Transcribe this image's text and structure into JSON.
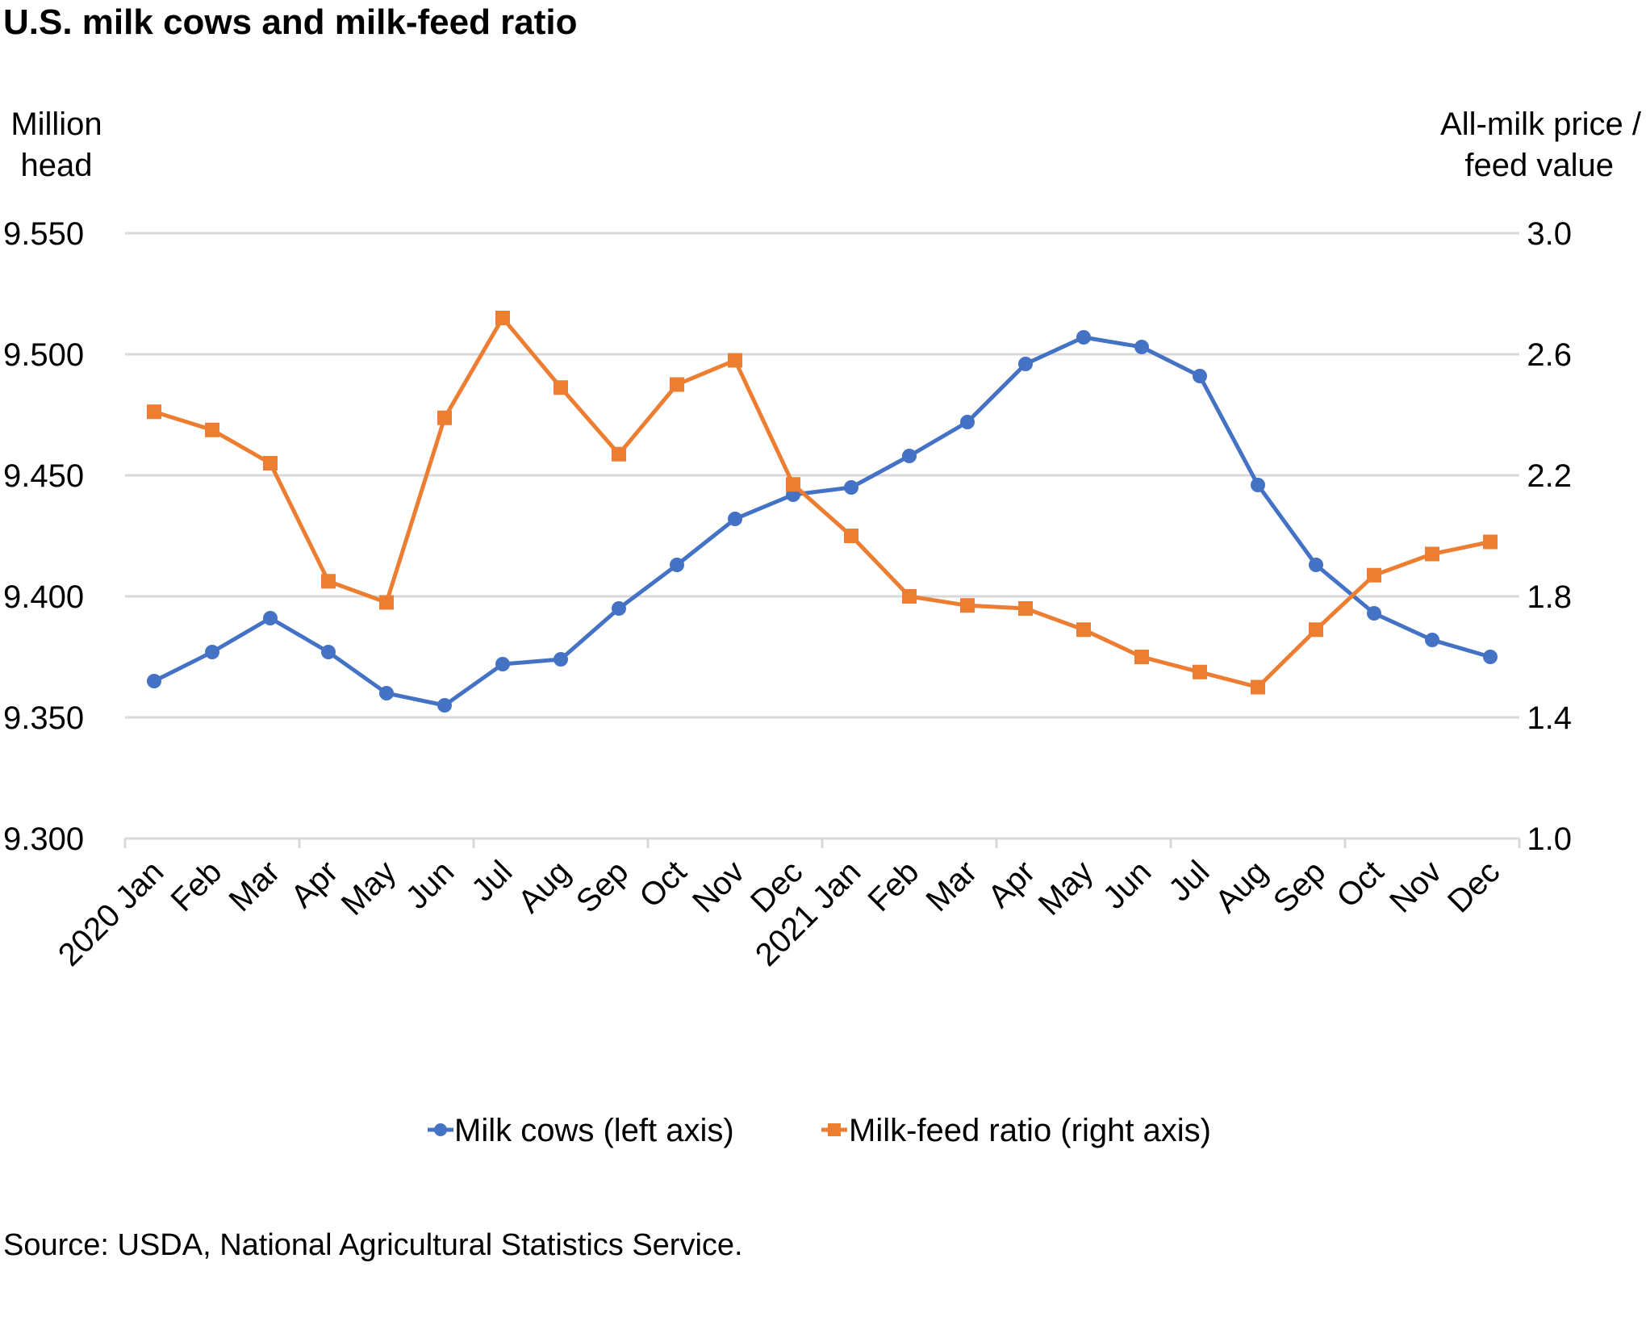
{
  "chart_data": {
    "type": "line",
    "title": "U.S. milk cows and milk-feed ratio",
    "ylabel_left": [
      "Million",
      "head"
    ],
    "ylabel_right": [
      "All-milk price /",
      "feed value"
    ],
    "categories": [
      "2020 Jan",
      "Feb",
      "Mar",
      "Apr",
      "May",
      "Jun",
      "Jul",
      "Aug",
      "Sep",
      "Oct",
      "Nov",
      "Dec",
      "2021 Jan",
      "Feb",
      "Mar",
      "Apr",
      "May",
      "Jun",
      "Jul",
      "Aug",
      "Sep",
      "Oct",
      "Nov",
      "Dec"
    ],
    "ylim_left": [
      9.3,
      9.55
    ],
    "yticks_left": [
      "9.300",
      "9.350",
      "9.400",
      "9.450",
      "9.500",
      "9.550"
    ],
    "ylim_right": [
      1.0,
      3.0
    ],
    "yticks_right": [
      "1.0",
      "1.4",
      "1.8",
      "2.2",
      "2.6",
      "3.0"
    ],
    "grid": true,
    "legend_position": "bottom",
    "series": [
      {
        "name": "Milk cows (left axis)",
        "axis": "left",
        "color": "#4472C4",
        "marker": "circle",
        "values": [
          9.365,
          9.377,
          9.391,
          9.377,
          9.36,
          9.355,
          9.372,
          9.374,
          9.395,
          9.413,
          9.432,
          9.442,
          9.445,
          9.458,
          9.472,
          9.496,
          9.507,
          9.503,
          9.491,
          9.446,
          9.413,
          9.393,
          9.382,
          9.375
        ]
      },
      {
        "name": "Milk-feed ratio (right axis)",
        "axis": "right",
        "color": "#ED7D31",
        "marker": "square",
        "values": [
          2.41,
          2.35,
          2.24,
          1.85,
          1.78,
          2.39,
          2.72,
          2.49,
          2.27,
          2.5,
          2.58,
          2.17,
          2.0,
          1.8,
          1.77,
          1.76,
          1.69,
          1.6,
          1.55,
          1.5,
          1.69,
          1.87,
          1.94,
          1.98
        ]
      }
    ],
    "source": "Source: USDA, National Agricultural Statistics Service."
  }
}
